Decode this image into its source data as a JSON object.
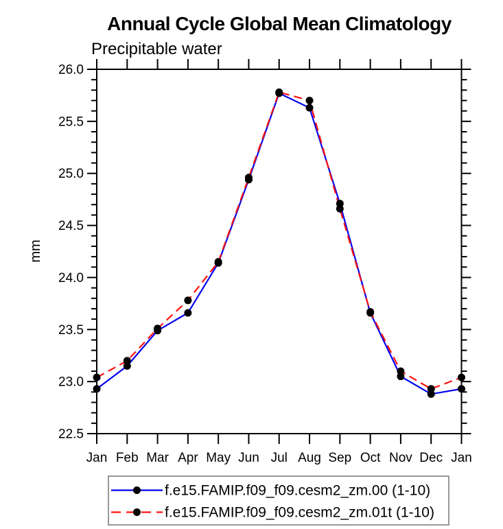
{
  "title": "Annual Cycle Global Mean Climatology",
  "subtitle": "Precipitable water",
  "chart_data": {
    "type": "line",
    "x_categories": [
      "Jan",
      "Feb",
      "Mar",
      "Apr",
      "May",
      "Jun",
      "Jul",
      "Aug",
      "Sep",
      "Oct",
      "Nov",
      "Dec",
      "Jan"
    ],
    "ylabel": "mm",
    "ylim": [
      22.5,
      26.0
    ],
    "y_major_step": 0.5,
    "y_minor_step": 0.1,
    "y_tick_labels": [
      "22.5",
      "23.0",
      "23.5",
      "24.0",
      "24.5",
      "25.0",
      "25.5",
      "26.0"
    ],
    "grid": false,
    "legend_position": "bottom",
    "marker": "black-dot",
    "series": [
      {
        "name": "f.e15.FAMIP.f09_f09.cesm2_zm.00 (1-10)",
        "color": "#0000ee",
        "dash": "solid",
        "values": [
          22.93,
          23.15,
          23.49,
          23.66,
          24.14,
          24.94,
          25.77,
          25.63,
          24.71,
          23.66,
          23.05,
          22.88,
          22.93
        ]
      },
      {
        "name": "f.e15.FAMIP.f09_f09.cesm2_zm.01t (1-10)",
        "color": "#ff1010",
        "dash": "dashed",
        "values": [
          23.04,
          23.2,
          23.51,
          23.78,
          24.15,
          24.96,
          25.78,
          25.7,
          24.66,
          23.67,
          23.1,
          22.93,
          23.04
        ]
      }
    ]
  },
  "colors": {
    "axis": "#000000",
    "marker": "#000000",
    "legend_border": "#777777",
    "background": "#ffffff"
  }
}
